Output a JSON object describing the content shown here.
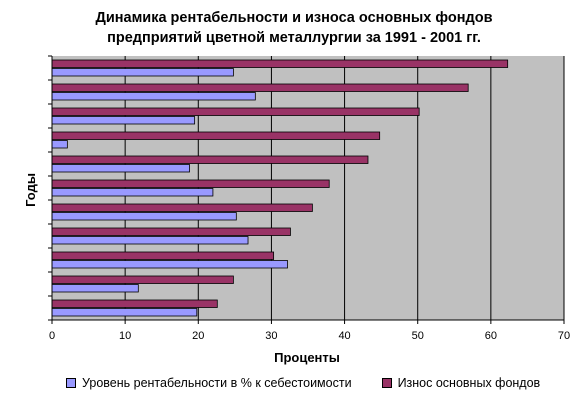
{
  "title": {
    "line1": "Динамика рентабельности и износа основных фондов",
    "line2": "предприятий цветной металлургии за 1991 - 2001 гг."
  },
  "colors": {
    "plot_background": "#c0c0c0",
    "profitability": "#9999ff",
    "depreciation": "#993366",
    "gridline": "#000000"
  },
  "chart_data": {
    "type": "bar",
    "orientation": "horizontal",
    "xlabel": "Проценты",
    "ylabel": "Годы",
    "xlim": [
      0,
      70
    ],
    "xticks": [
      0,
      10,
      20,
      30,
      40,
      50,
      60,
      70
    ],
    "grid": true,
    "legend_position": "bottom",
    "categories": [
      "",
      "",
      "",
      "",
      "",
      "",
      "",
      "",
      "",
      "",
      ""
    ],
    "series": [
      {
        "name": "Уровень рентабельности в % к себестоимости",
        "values": [
          19.8,
          11.8,
          32.2,
          26.8,
          25.2,
          22.0,
          18.8,
          2.1,
          19.5,
          27.8,
          24.8
        ]
      },
      {
        "name": "Износ основных фондов",
        "values": [
          22.6,
          24.8,
          30.3,
          32.6,
          35.6,
          37.9,
          43.2,
          44.8,
          50.2,
          56.9,
          62.3
        ]
      }
    ]
  }
}
